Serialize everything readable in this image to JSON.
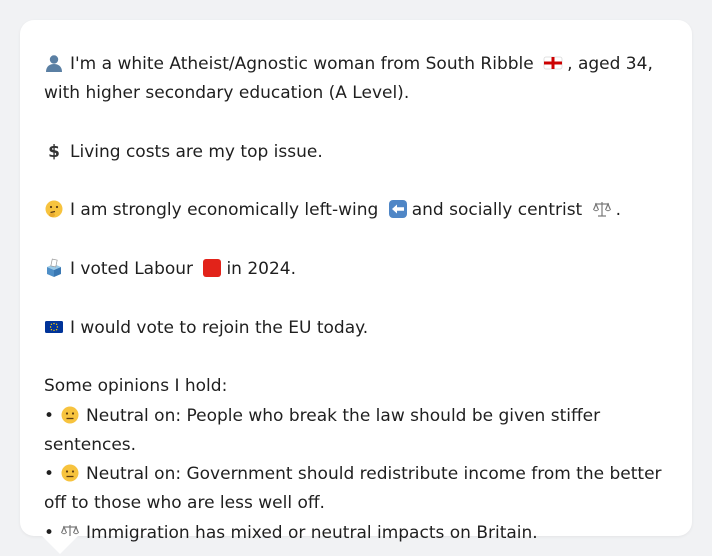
{
  "profile": {
    "intro_before_flag": "I'm a white Atheist/Agnostic woman from South Ribble",
    "intro_after_flag": ", aged 34, with higher secondary education (A Level).",
    "top_issue": "Living costs are my top issue.",
    "politics_before_left": "I am strongly economically left-wing",
    "politics_mid": "and socially centrist",
    "politics_end": ".",
    "vote_before_party": "I voted Labour",
    "vote_after_party": "in 2024.",
    "eu": "I would vote to rejoin the EU today.",
    "opinions_heading": "Some opinions I hold:",
    "opinions": [
      {
        "bullet": "•",
        "icon": "neutral-face-icon",
        "text": "Neutral on: People who break the law should be given stiffer sentences."
      },
      {
        "bullet": "•",
        "icon": "neutral-face-icon",
        "text": "Neutral on: Government should redistribute income from the better off to those who are less well off."
      },
      {
        "bullet": "•",
        "icon": "balance-scale-icon",
        "text": "Immigration has mixed or neutral impacts on Britain."
      }
    ]
  },
  "colors": {
    "background": "#f1f2f4",
    "card": "#ffffff",
    "text": "#1f1f1f",
    "labour_red": "#e2231a",
    "left_arrow_blue": "#4f86c6",
    "eu_blue": "#003399",
    "england_red": "#cc0000"
  }
}
